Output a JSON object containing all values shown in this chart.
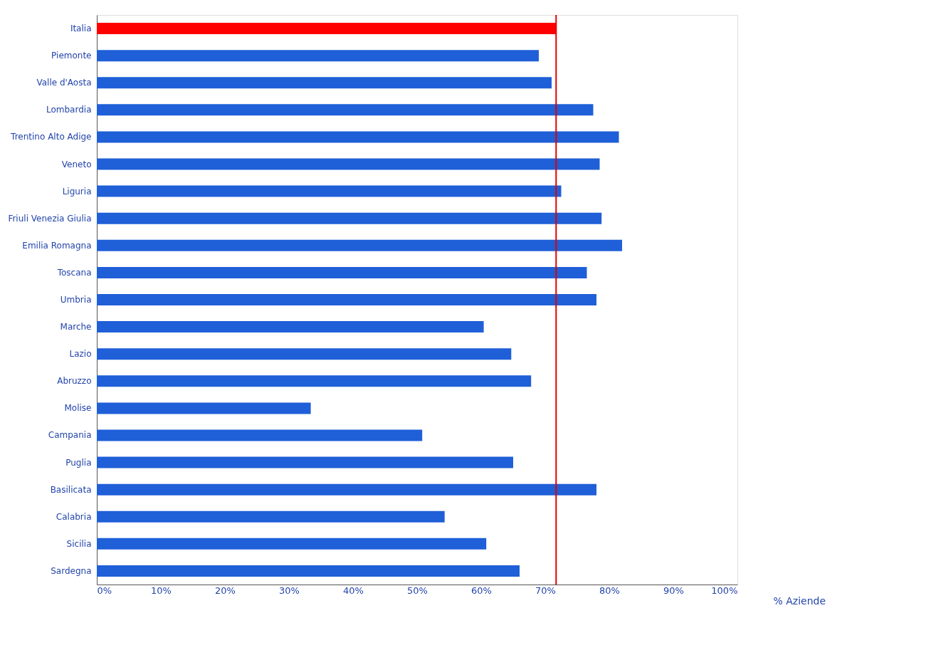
{
  "chart_data": {
    "type": "bar",
    "orientation": "horizontal",
    "xlabel": "% Aziende",
    "categories": [
      "Italia",
      "Piemonte",
      "Valle d'Aosta",
      "Lombardia",
      "Trentino Alto Adige",
      "Veneto",
      "Liguria",
      "Friuli Venezia Giulia",
      "Emilia Romagna",
      "Toscana",
      "Umbria",
      "Marche",
      "Lazio",
      "Abruzzo",
      "Molise",
      "Campania",
      "Puglia",
      "Basilicata",
      "Calabria",
      "Sicilia",
      "Sardegna"
    ],
    "values": [
      71.7,
      69,
      71,
      77.5,
      81.5,
      78.5,
      72.5,
      78.8,
      82,
      76.5,
      78,
      60.4,
      64.7,
      67.8,
      33.4,
      50.8,
      65,
      78,
      54.3,
      60.8,
      66
    ],
    "colors": [
      "#ff0000",
      "#1f5fd8",
      "#1f5fd8",
      "#1f5fd8",
      "#1f5fd8",
      "#1f5fd8",
      "#1f5fd8",
      "#1f5fd8",
      "#1f5fd8",
      "#1f5fd8",
      "#1f5fd8",
      "#1f5fd8",
      "#1f5fd8",
      "#1f5fd8",
      "#1f5fd8",
      "#1f5fd8",
      "#1f5fd8",
      "#1f5fd8",
      "#1f5fd8",
      "#1f5fd8",
      "#1f5fd8"
    ],
    "xlim": [
      0,
      100
    ],
    "xticks": [
      {
        "value": 0,
        "label": "0%"
      },
      {
        "value": 10,
        "label": "10%"
      },
      {
        "value": 20,
        "label": "20%"
      },
      {
        "value": 30,
        "label": "30%"
      },
      {
        "value": 40,
        "label": "40%"
      },
      {
        "value": 50,
        "label": "50%"
      },
      {
        "value": 60,
        "label": "60%"
      },
      {
        "value": 70,
        "label": "70%"
      },
      {
        "value": 80,
        "label": "80%"
      },
      {
        "value": 90,
        "label": "90%"
      },
      {
        "value": 100,
        "label": "100%"
      }
    ],
    "ref_lines": [
      {
        "axis": "x",
        "value": 71.7,
        "color": "#e00000"
      }
    ],
    "grid": false
  }
}
